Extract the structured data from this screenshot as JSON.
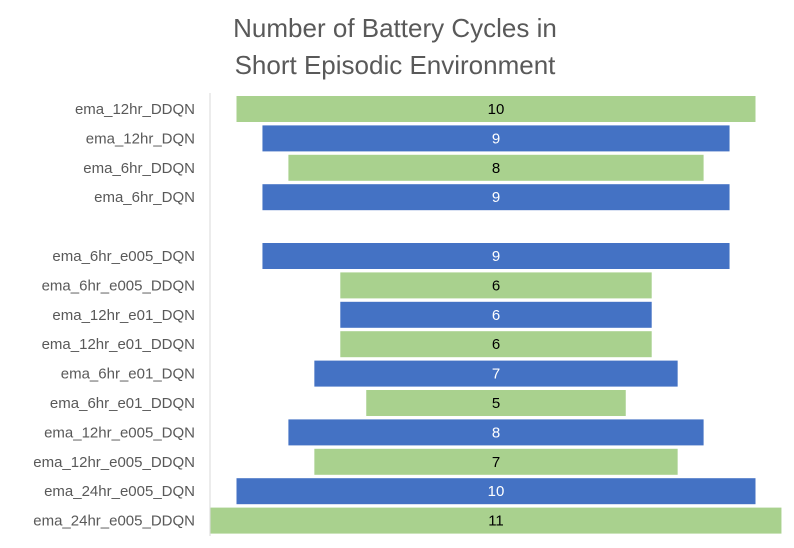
{
  "chart_data": {
    "type": "bar",
    "orientation": "horizontal-centered",
    "title": "Number of Battery Cycles in\nShort Episodic Environment",
    "title_lines": [
      "Number of Battery Cycles in",
      "Short Episodic Environment"
    ],
    "categories": [
      "ema_12hr_DDQN",
      "ema_12hr_DQN",
      "ema_6hr_DDQN",
      "ema_6hr_DQN",
      "",
      "ema_6hr_e005_DQN",
      "ema_6hr_e005_DDQN",
      "ema_12hr_e01_DQN",
      "ema_12hr_e01_DDQN",
      "ema_6hr_e01_DQN",
      "ema_6hr_e01_DDQN",
      "ema_12hr_e005_DQN",
      "ema_12hr_e005_DDQN",
      "ema_24hr_e005_DQN",
      "ema_24hr_e005_DDQN"
    ],
    "values": [
      10,
      9,
      8,
      9,
      null,
      9,
      6,
      6,
      6,
      7,
      5,
      8,
      7,
      10,
      11
    ],
    "data_labels": [
      "10",
      "9",
      "8",
      "9",
      "",
      "9",
      "6",
      "6",
      "6",
      "7",
      "5",
      "8",
      "7",
      "10",
      "11"
    ],
    "bar_colors": [
      "#a9d18e",
      "#4472c4",
      "#a9d18e",
      "#4472c4",
      "",
      "#4472c4",
      "#a9d18e",
      "#4472c4",
      "#a9d18e",
      "#4472c4",
      "#a9d18e",
      "#4472c4",
      "#a9d18e",
      "#4472c4",
      "#a9d18e"
    ],
    "label_colors": [
      "#000000",
      "#ffffff",
      "#000000",
      "#ffffff",
      "",
      "#ffffff",
      "#000000",
      "#ffffff",
      "#000000",
      "#ffffff",
      "#000000",
      "#ffffff",
      "#000000",
      "#ffffff",
      "#000000"
    ],
    "xlim": [
      0,
      11
    ],
    "grid": false,
    "legend": "none",
    "colors": {
      "green": "#a9d18e",
      "blue": "#4472c4",
      "axis": "#d9d9d9",
      "text": "#595959"
    }
  }
}
